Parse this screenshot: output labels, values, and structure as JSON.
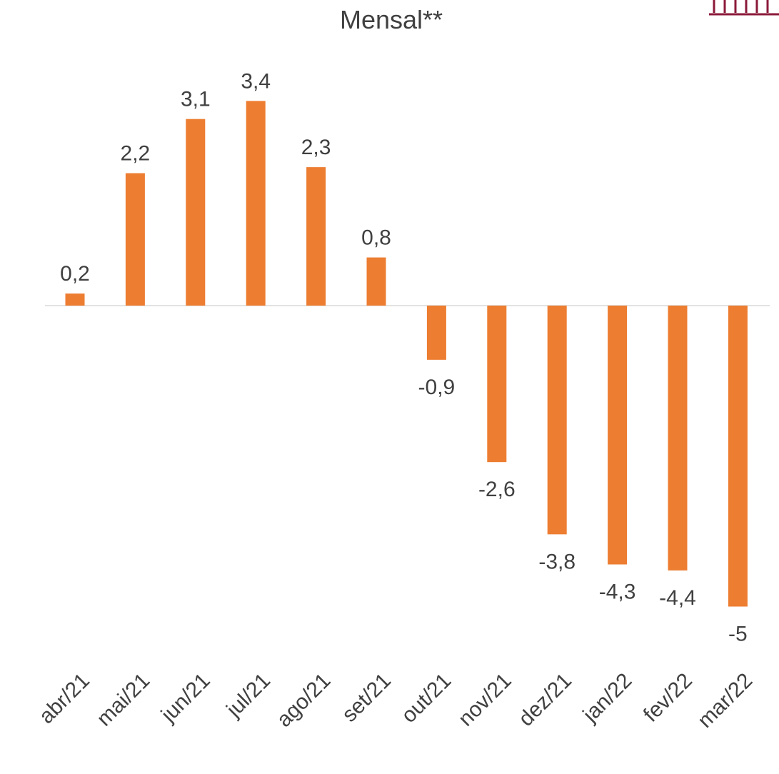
{
  "chart_data": {
    "type": "bar",
    "title": "Mensal**",
    "categories": [
      "abr/21",
      "mai/21",
      "jun/21",
      "jul/21",
      "ago/21",
      "set/21",
      "out/21",
      "nov/21",
      "dez/21",
      "jan/22",
      "fev/22",
      "mar/22"
    ],
    "values": [
      0.2,
      2.2,
      3.1,
      3.4,
      2.3,
      0.8,
      -0.9,
      -2.6,
      -3.8,
      -4.3,
      -4.4,
      -5
    ],
    "value_labels": [
      "0,2",
      "2,2",
      "3,1",
      "3,4",
      "2,3",
      "0,8",
      "-0,9",
      "-2,6",
      "-3,8",
      "-4,3",
      "-4,4",
      "-5"
    ],
    "color": "#ed7d31"
  }
}
